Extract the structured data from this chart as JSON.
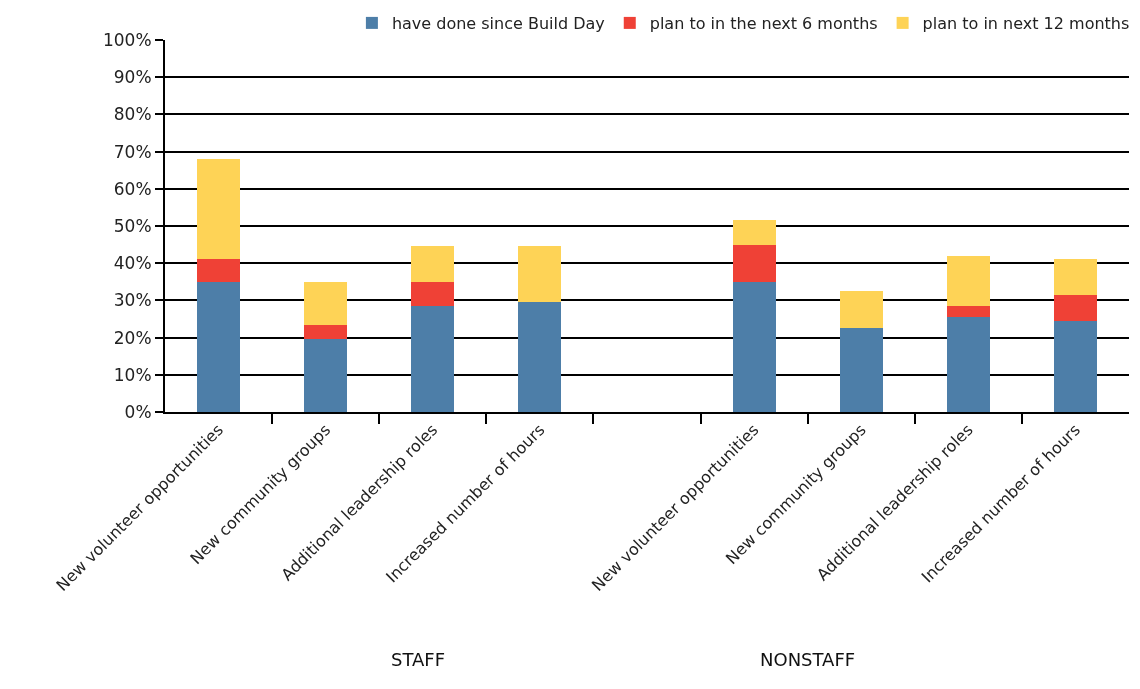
{
  "chart_data": {
    "type": "bar",
    "stacked": true,
    "categories": [
      "New volunteer opportunities",
      "New community groups",
      "Additional leadership roles",
      "Increased number of hours",
      null,
      "New volunteer opportunities",
      "New community groups",
      "Additional leadership roles",
      "Increased number of hours"
    ],
    "series": [
      {
        "name": "have done since Build Day",
        "color": "#4d7ea8",
        "values": [
          35,
          19.5,
          28.5,
          29.5,
          null,
          35,
          22.5,
          25.5,
          24.5
        ]
      },
      {
        "name": "plan to in the next 6 months",
        "color": "#ef4136",
        "values": [
          6,
          4,
          6.5,
          0,
          null,
          10,
          0,
          3,
          7
        ]
      },
      {
        "name": "plan to in next 12 months",
        "color": "#fed356",
        "values": [
          27,
          11.5,
          9.5,
          15,
          null,
          6.5,
          10,
          13.5,
          9.5
        ]
      }
    ],
    "ylim": [
      0,
      100
    ],
    "yticks": [
      {
        "value": 0,
        "label": "0%"
      },
      {
        "value": 10,
        "label": "10%"
      },
      {
        "value": 20,
        "label": "20%"
      },
      {
        "value": 30,
        "label": "30%"
      },
      {
        "value": 40,
        "label": "40%"
      },
      {
        "value": 50,
        "label": "50%"
      },
      {
        "value": 60,
        "label": "60%"
      },
      {
        "value": 70,
        "label": "70%"
      },
      {
        "value": 80,
        "label": "80%"
      },
      {
        "value": 90,
        "label": "90%"
      },
      {
        "value": 100,
        "label": "100%"
      }
    ],
    "grid": "y",
    "legend": "top",
    "annotations": [
      "STAFF",
      "NONSTAFF"
    ]
  }
}
